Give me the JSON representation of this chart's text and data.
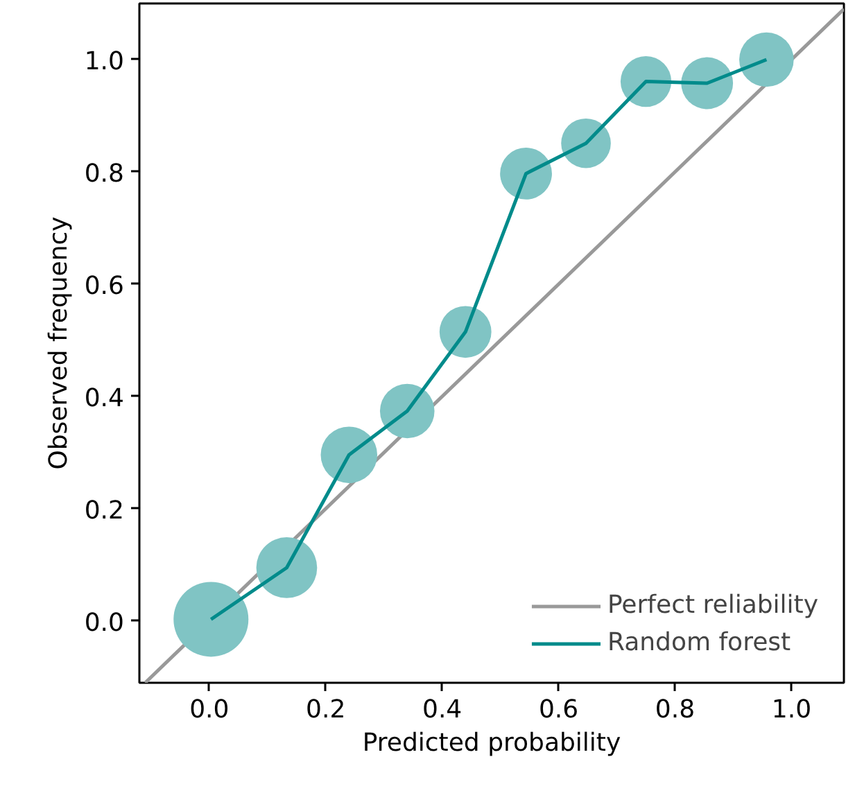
{
  "chart_data": {
    "type": "bubble",
    "xlabel": "Predicted probability",
    "ylabel": "Observed frequency",
    "xlim": [
      -0.12,
      1.09
    ],
    "ylim": [
      -0.11,
      1.1
    ],
    "xticks": [
      {
        "value": 0,
        "label": "0.0"
      },
      0.2,
      0.4,
      0.6,
      0.8,
      {
        "value": 1,
        "label": "1.0"
      }
    ],
    "yticks": [
      {
        "value": 0,
        "label": "0.0"
      },
      0.2,
      0.4,
      0.6,
      0.8,
      {
        "value": 1,
        "label": "1.0"
      }
    ],
    "grid": false,
    "legend": "bottom right",
    "series": [
      {
        "type": "line",
        "name": "Perfect reliability",
        "color": "#999999",
        "x": [
          -0.11,
          1.09
        ],
        "values": [
          -0.11,
          1.09
        ]
      },
      {
        "color": "#80c4c4",
        "x": [
          0.003,
          0.133,
          0.24,
          0.34,
          0.44,
          0.544,
          0.647,
          0.75,
          0.855,
          0.957
        ],
        "values": [
          0.003,
          0.095,
          0.296,
          0.374,
          0.515,
          0.797,
          0.851,
          0.961,
          0.958,
          1.0
        ],
        "sizes": [
          1,
          0.66,
          0.57,
          0.53,
          0.48,
          0.48,
          0.44,
          0.46,
          0.48,
          0.53
        ]
      },
      {
        "type": "line",
        "name": "Random forest",
        "color": "#008b8b",
        "x": [
          0.003,
          0.133,
          0.24,
          0.34,
          0.44,
          0.544,
          0.647,
          0.75,
          0.855,
          0.957
        ],
        "values": [
          0.003,
          0.095,
          0.296,
          0.374,
          0.515,
          0.797,
          0.851,
          0.961,
          0.958,
          1.0
        ]
      }
    ]
  }
}
